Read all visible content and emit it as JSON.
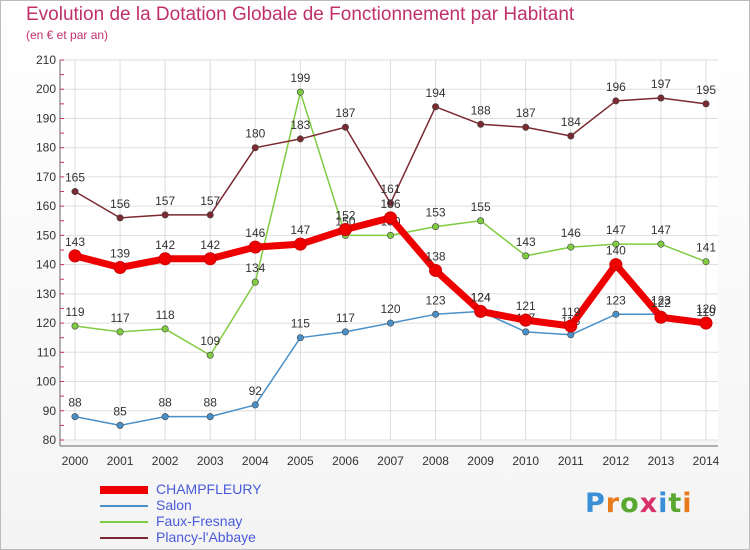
{
  "header": {
    "title": "Evolution de la Dotation Globale de Fonctionnement par Habitant",
    "subtitle": "(en € et par an)"
  },
  "brand": {
    "text": "Proxiti",
    "colors": [
      "#3a8fd6",
      "#e87a1c",
      "#5aa832",
      "#d8326a",
      "#3a8fd6",
      "#5aa832",
      "#e87a1c"
    ]
  },
  "chart_data": {
    "type": "line",
    "title": "Evolution de la Dotation Globale de Fonctionnement par Habitant",
    "subtitle": "(en € et par an)",
    "xlabel": "",
    "ylabel": "",
    "x": [
      2000,
      2001,
      2002,
      2003,
      2004,
      2005,
      2006,
      2007,
      2008,
      2009,
      2010,
      2011,
      2012,
      2013,
      2014
    ],
    "ylim": [
      80,
      210
    ],
    "yticks": [
      80,
      90,
      100,
      110,
      120,
      130,
      140,
      150,
      160,
      170,
      180,
      190,
      200,
      210
    ],
    "grid": true,
    "legend_position": "bottom-left",
    "series": [
      {
        "name": "CHAMPFLEURY",
        "color": "#ee0000",
        "bold": true,
        "values": [
          143,
          139,
          142,
          142,
          146,
          147,
          152,
          156,
          138,
          124,
          121,
          119,
          140,
          122,
          120
        ],
        "labels": [
          "143",
          "139",
          "142",
          "142",
          "146",
          "147",
          "152",
          "156",
          "138",
          "124",
          "121",
          "119",
          "140",
          "122",
          "120"
        ]
      },
      {
        "name": "Salon",
        "color": "#4a90c8",
        "bold": false,
        "values": [
          88,
          85,
          88,
          88,
          92,
          115,
          117,
          120,
          123,
          124,
          117,
          116,
          123,
          123,
          119
        ],
        "labels": [
          "88",
          "85",
          "88",
          "88",
          "92",
          "115",
          "117",
          "120",
          "123",
          "124",
          "117",
          "116",
          "123",
          "123",
          "119"
        ]
      },
      {
        "name": "Faux-Fresnay",
        "color": "#80cc40",
        "bold": false,
        "values": [
          119,
          117,
          118,
          109,
          134,
          199,
          150,
          150,
          153,
          155,
          143,
          146,
          147,
          147,
          141
        ],
        "labels": [
          "119",
          "117",
          "118",
          "109",
          "134",
          "199",
          "150",
          "150",
          "153",
          "155",
          "143",
          "146",
          "147",
          "147",
          "141"
        ]
      },
      {
        "name": "Plancy-l'Abbaye",
        "color": "#7a2a30",
        "bold": false,
        "values": [
          165,
          156,
          157,
          157,
          180,
          183,
          187,
          161,
          194,
          188,
          187,
          184,
          196,
          197,
          195
        ],
        "labels": [
          "165",
          "156",
          "157",
          "157",
          "180",
          "183",
          "187",
          "161",
          "194",
          "188",
          "187",
          "184",
          "196",
          "197",
          "195"
        ]
      }
    ]
  }
}
